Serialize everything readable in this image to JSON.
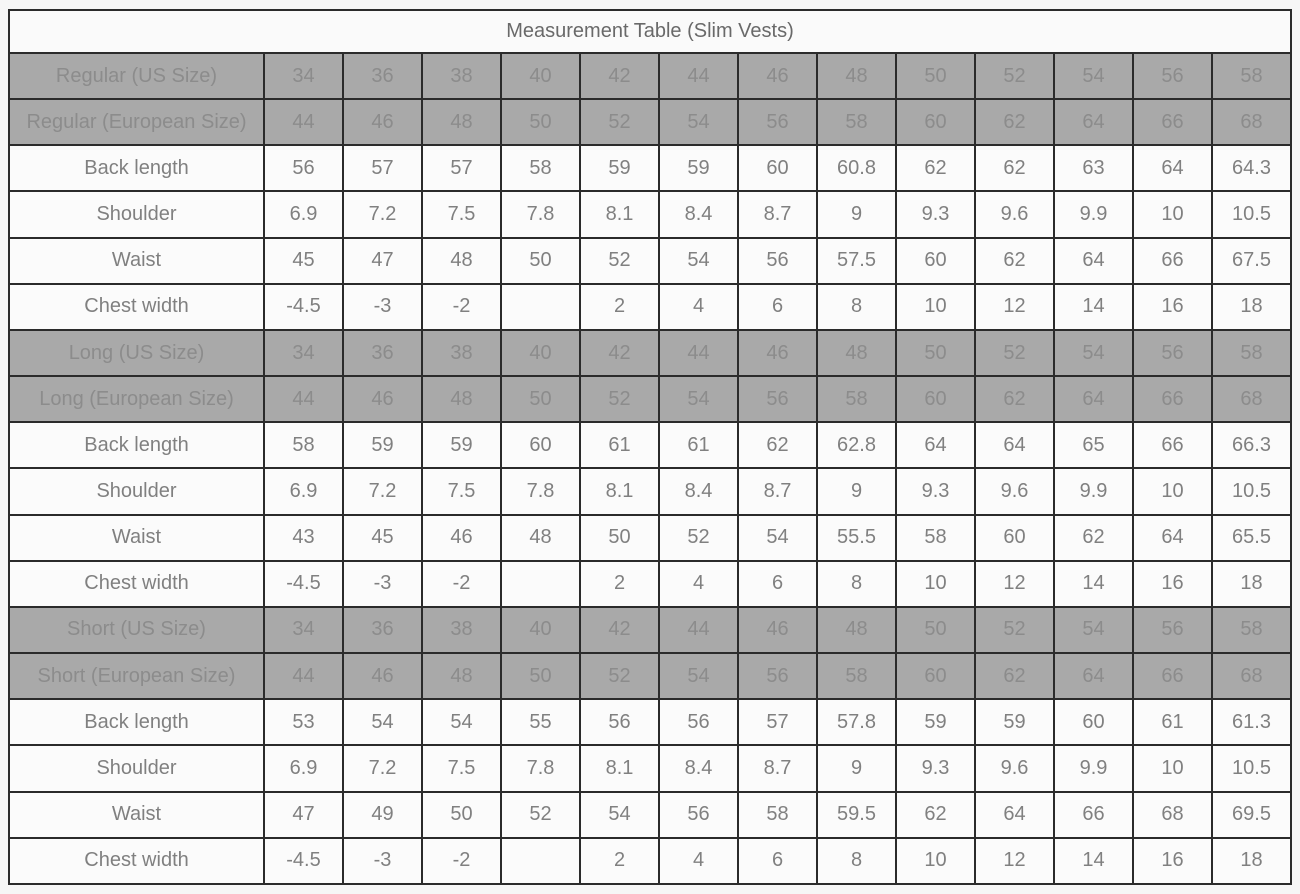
{
  "page": {
    "background": "#f6f6f6"
  },
  "table": {
    "title": "Measurement Table (Slim Vests)",
    "colors": {
      "title_bg": "#fafafa",
      "title_text": "#696969",
      "size_row_bg": "#a9a9a9",
      "size_row_text": "#8c8c8c",
      "data_row_bg": "#fbfbfb",
      "data_row_text": "#808080",
      "border": "#2b2b2b"
    },
    "sections": [
      {
        "name": "Regular",
        "size_rows": [
          {
            "label": "Regular (US Size)",
            "values": [
              "34",
              "36",
              "38",
              "40",
              "42",
              "44",
              "46",
              "48",
              "50",
              "52",
              "54",
              "56",
              "58"
            ]
          },
          {
            "label": "Regular (European Size)",
            "values": [
              "44",
              "46",
              "48",
              "50",
              "52",
              "54",
              "56",
              "58",
              "60",
              "62",
              "64",
              "66",
              "68"
            ]
          }
        ],
        "measure_rows": [
          {
            "label": "Back length",
            "values": [
              "56",
              "57",
              "57",
              "58",
              "59",
              "59",
              "60",
              "60.8",
              "62",
              "62",
              "63",
              "64",
              "64.3"
            ]
          },
          {
            "label": "Shoulder",
            "values": [
              "6.9",
              "7.2",
              "7.5",
              "7.8",
              "8.1",
              "8.4",
              "8.7",
              "9",
              "9.3",
              "9.6",
              "9.9",
              "10",
              "10.5"
            ]
          },
          {
            "label": "Waist",
            "values": [
              "45",
              "47",
              "48",
              "50",
              "52",
              "54",
              "56",
              "57.5",
              "60",
              "62",
              "64",
              "66",
              "67.5"
            ]
          },
          {
            "label": "Chest width",
            "values": [
              "-4.5",
              "-3",
              "-2",
              "",
              "2",
              "4",
              "6",
              "8",
              "10",
              "12",
              "14",
              "16",
              "18"
            ]
          }
        ]
      },
      {
        "name": "Long",
        "size_rows": [
          {
            "label": "Long (US Size)",
            "values": [
              "34",
              "36",
              "38",
              "40",
              "42",
              "44",
              "46",
              "48",
              "50",
              "52",
              "54",
              "56",
              "58"
            ]
          },
          {
            "label": "Long (European Size)",
            "values": [
              "44",
              "46",
              "48",
              "50",
              "52",
              "54",
              "56",
              "58",
              "60",
              "62",
              "64",
              "66",
              "68"
            ]
          }
        ],
        "measure_rows": [
          {
            "label": "Back length",
            "values": [
              "58",
              "59",
              "59",
              "60",
              "61",
              "61",
              "62",
              "62.8",
              "64",
              "64",
              "65",
              "66",
              "66.3"
            ]
          },
          {
            "label": "Shoulder",
            "values": [
              "6.9",
              "7.2",
              "7.5",
              "7.8",
              "8.1",
              "8.4",
              "8.7",
              "9",
              "9.3",
              "9.6",
              "9.9",
              "10",
              "10.5"
            ]
          },
          {
            "label": "Waist",
            "values": [
              "43",
              "45",
              "46",
              "48",
              "50",
              "52",
              "54",
              "55.5",
              "58",
              "60",
              "62",
              "64",
              "65.5"
            ]
          },
          {
            "label": "Chest width",
            "values": [
              "-4.5",
              "-3",
              "-2",
              "",
              "2",
              "4",
              "6",
              "8",
              "10",
              "12",
              "14",
              "16",
              "18"
            ]
          }
        ]
      },
      {
        "name": "Short",
        "size_rows": [
          {
            "label": "Short (US Size)",
            "values": [
              "34",
              "36",
              "38",
              "40",
              "42",
              "44",
              "46",
              "48",
              "50",
              "52",
              "54",
              "56",
              "58"
            ]
          },
          {
            "label": "Short (European Size)",
            "values": [
              "44",
              "46",
              "48",
              "50",
              "52",
              "54",
              "56",
              "58",
              "60",
              "62",
              "64",
              "66",
              "68"
            ]
          }
        ],
        "measure_rows": [
          {
            "label": "Back length",
            "values": [
              "53",
              "54",
              "54",
              "55",
              "56",
              "56",
              "57",
              "57.8",
              "59",
              "59",
              "60",
              "61",
              "61.3"
            ]
          },
          {
            "label": "Shoulder",
            "values": [
              "6.9",
              "7.2",
              "7.5",
              "7.8",
              "8.1",
              "8.4",
              "8.7",
              "9",
              "9.3",
              "9.6",
              "9.9",
              "10",
              "10.5"
            ]
          },
          {
            "label": "Waist",
            "values": [
              "47",
              "49",
              "50",
              "52",
              "54",
              "56",
              "58",
              "59.5",
              "62",
              "64",
              "66",
              "68",
              "69.5"
            ]
          },
          {
            "label": "Chest width",
            "values": [
              "-4.5",
              "-3",
              "-2",
              "",
              "2",
              "4",
              "6",
              "8",
              "10",
              "12",
              "14",
              "16",
              "18"
            ]
          }
        ]
      }
    ]
  }
}
